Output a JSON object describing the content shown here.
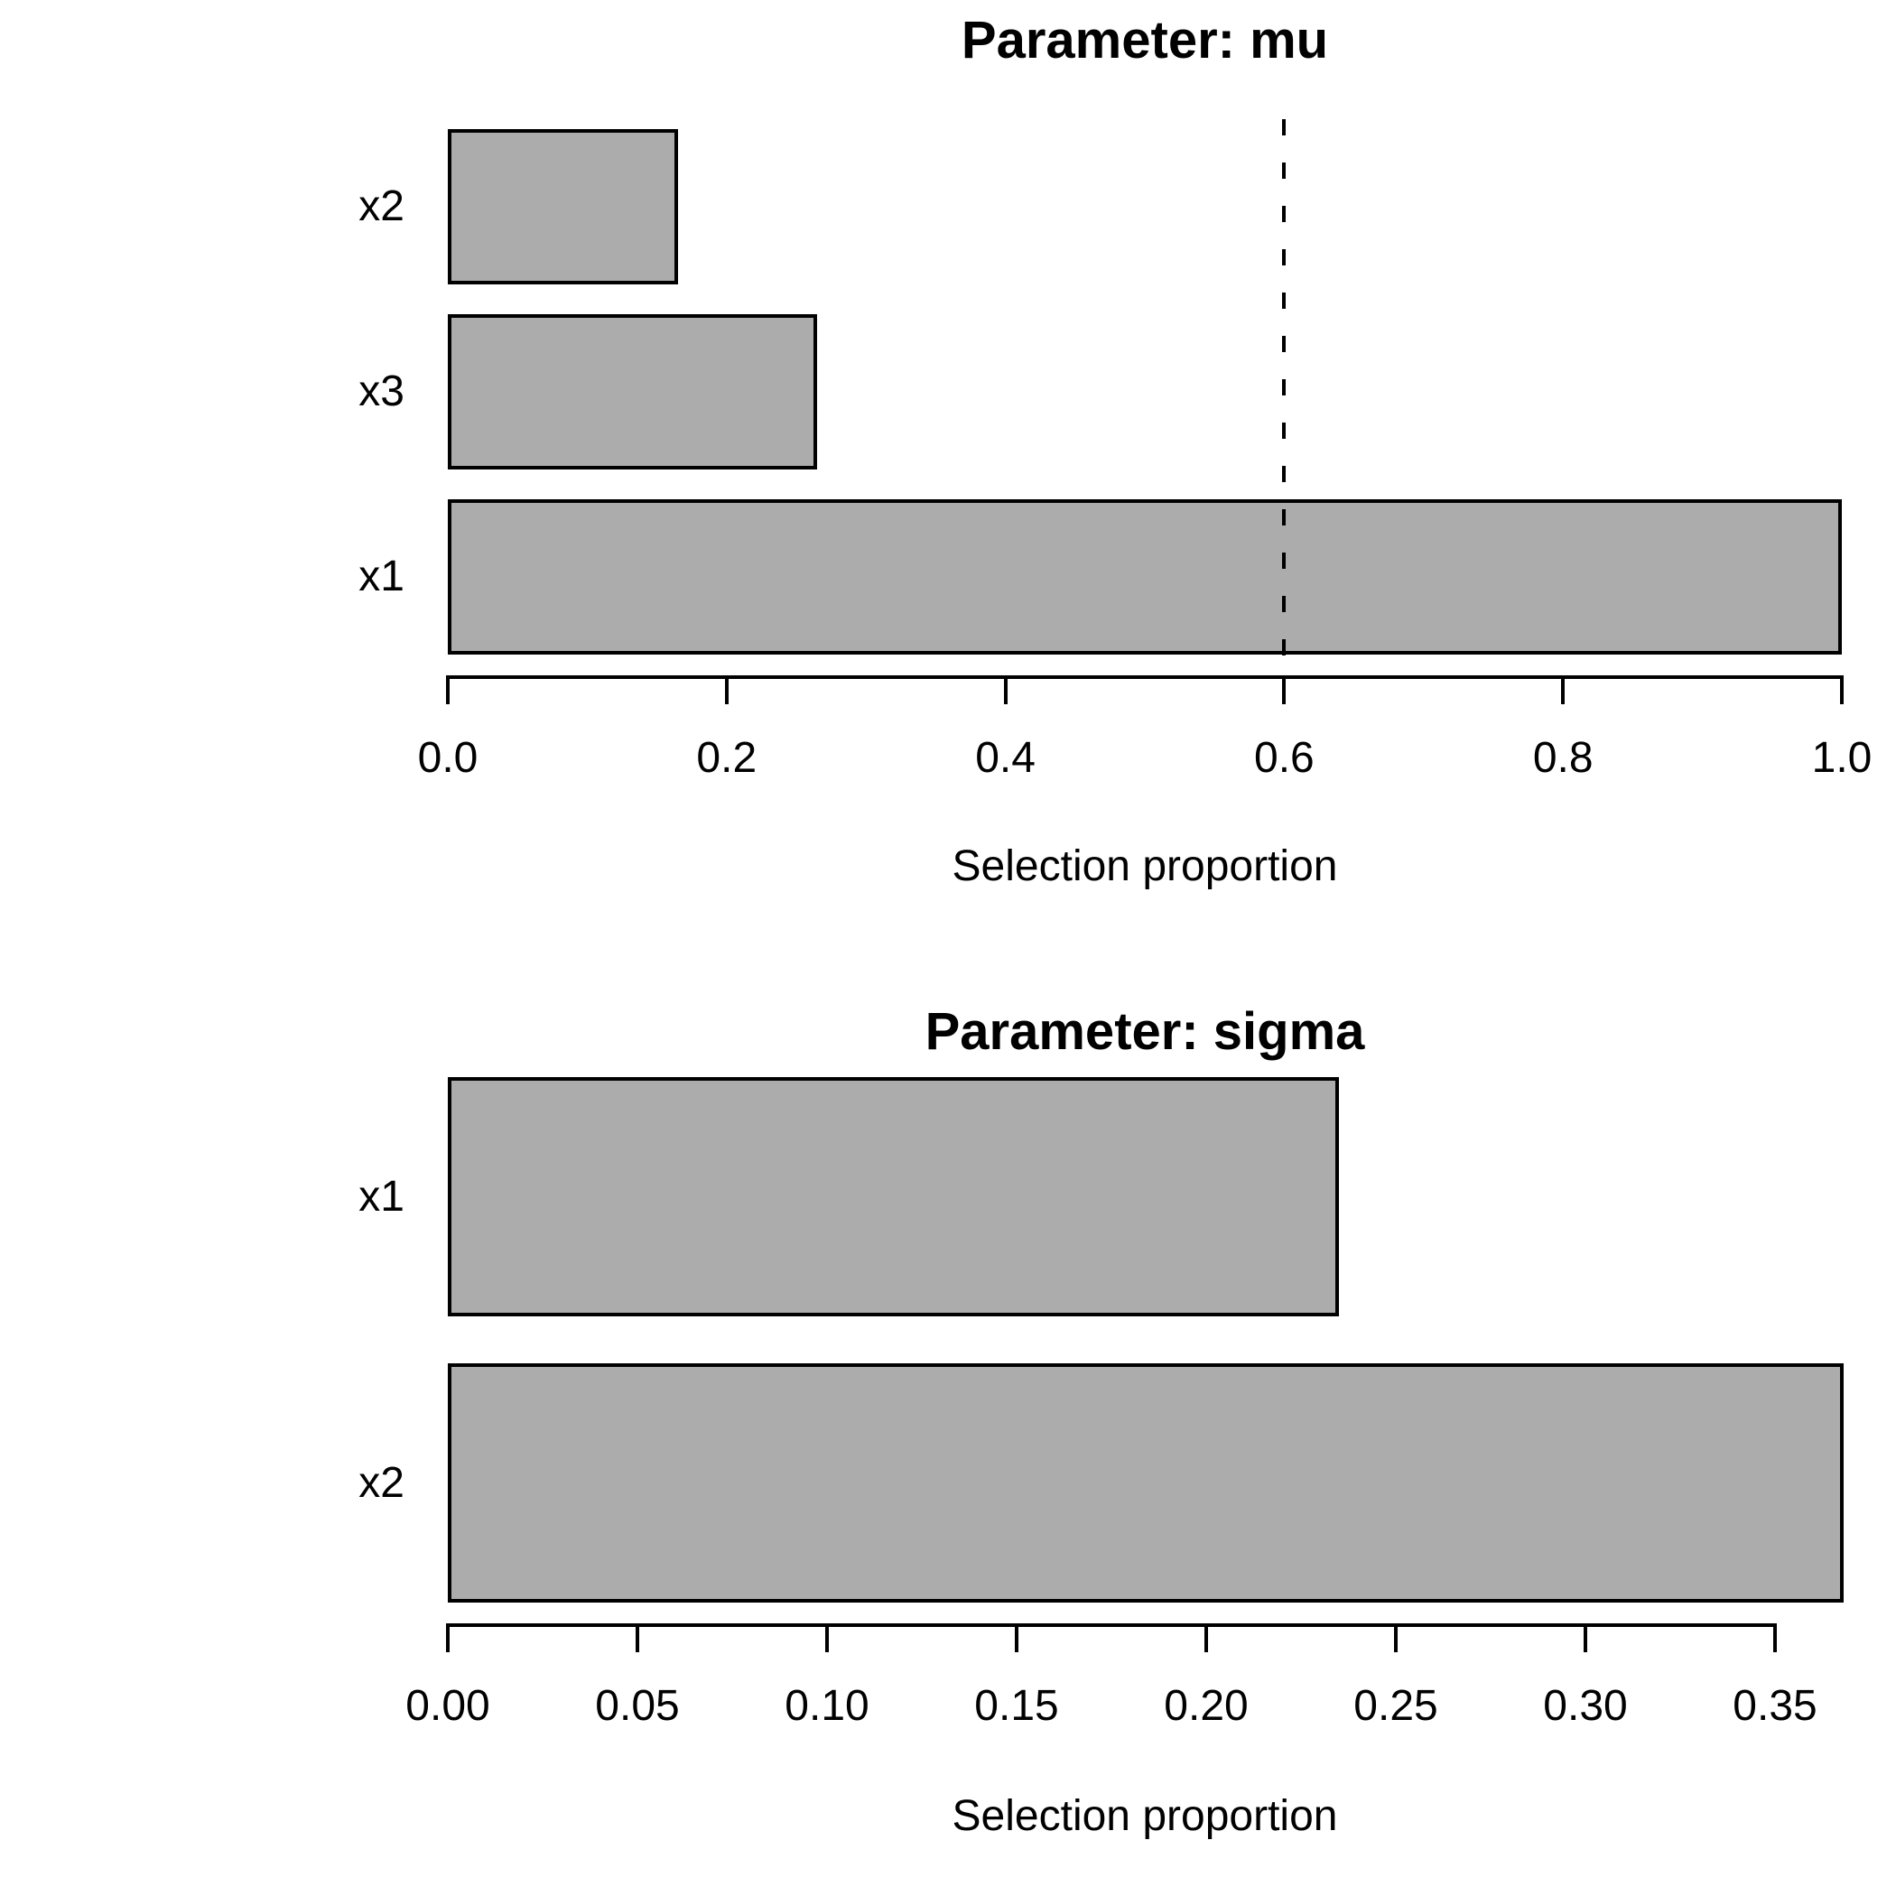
{
  "figure": {
    "background": "#ffffff",
    "bar_fill": "#acacac",
    "bar_border": "#000000",
    "text_color": "#000000",
    "threshold_color": "#000000"
  },
  "chart_data": [
    {
      "type": "bar",
      "orientation": "horizontal",
      "title": "Parameter: mu",
      "xlabel": "Selection proportion",
      "categories": [
        "x2",
        "x3",
        "x1"
      ],
      "values": [
        0.165,
        0.265,
        1.0
      ],
      "xlim": [
        0.0,
        1.0
      ],
      "xticks": [
        0.0,
        0.2,
        0.4,
        0.6,
        0.8,
        1.0
      ],
      "xtick_labels": [
        "0.0",
        "0.2",
        "0.4",
        "0.6",
        "0.8",
        "1.0"
      ],
      "threshold_line": {
        "value": 0.6,
        "style": "dashed"
      },
      "grid": false,
      "legend": null
    },
    {
      "type": "bar",
      "orientation": "horizontal",
      "title": "Parameter: sigma",
      "xlabel": "Selection proportion",
      "categories": [
        "x1",
        "x2"
      ],
      "values": [
        0.235,
        0.368
      ],
      "xlim": [
        0.0,
        0.368
      ],
      "xticks": [
        0.0,
        0.05,
        0.1,
        0.15,
        0.2,
        0.25,
        0.3,
        0.35
      ],
      "xtick_labels": [
        "0.00",
        "0.05",
        "0.10",
        "0.15",
        "0.20",
        "0.25",
        "0.30",
        "0.35"
      ],
      "threshold_line": null,
      "grid": false,
      "legend": null
    }
  ]
}
